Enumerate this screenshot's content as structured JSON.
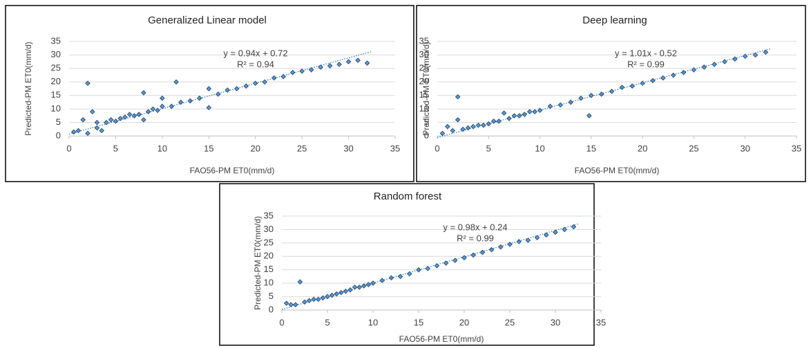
{
  "chart_data": [
    {
      "type": "scatter",
      "title": "Generalized Linear model",
      "x_label": "FAO56-PM ET0(mm/d)",
      "y_label": "Predicted-PM ET0(mm/d)",
      "annotations": [
        "y = 0.94x + 0.72",
        "R² = 0.94"
      ],
      "xlim": [
        0,
        35
      ],
      "ylim": [
        0,
        35
      ],
      "xticks": [
        0,
        5,
        10,
        15,
        20,
        25,
        30,
        35
      ],
      "yticks": [
        0,
        5,
        10,
        15,
        20,
        25,
        30,
        35
      ],
      "grid": true,
      "color": "#5b9bd5",
      "series": [
        {
          "x": [
            0.5,
            1,
            1.5,
            2,
            2,
            2.5,
            3,
            3,
            3.5,
            4,
            4.5,
            5,
            5.5,
            6,
            6.5,
            7,
            7.5,
            8,
            8,
            8.5,
            9,
            9.5,
            10,
            10,
            11,
            11.5,
            12,
            13,
            14,
            15,
            15,
            16,
            17,
            18,
            19,
            20,
            21,
            22,
            23,
            24,
            25,
            26,
            27,
            28,
            29,
            30,
            31,
            32
          ],
          "values": [
            1.5,
            2,
            6,
            19.5,
            1,
            9,
            3,
            5,
            2,
            5,
            6,
            5.5,
            6.5,
            7,
            8,
            7.5,
            8,
            16,
            6,
            9,
            10,
            9.5,
            11,
            14,
            11,
            20,
            12.5,
            13,
            14,
            10.5,
            17.5,
            15.5,
            17,
            17.5,
            18.5,
            19.5,
            20,
            21.5,
            22,
            23.5,
            24,
            24.5,
            25.5,
            26,
            26.5,
            27.5,
            28,
            27
          ]
        }
      ],
      "trendline": {
        "x": [
          0,
          32.5
        ],
        "values": [
          0.72,
          31.27
        ]
      }
    },
    {
      "type": "scatter",
      "title": "Deep learning",
      "x_label": "FAO56-PM ET0(mm/d)",
      "y_label": "Predicted-PM ET0(mm/d)",
      "annotations": [
        "y = 1.01x - 0.52",
        "R² = 0.99"
      ],
      "xlim": [
        0,
        35
      ],
      "ylim": [
        0,
        35
      ],
      "xticks": [
        0,
        5,
        10,
        15,
        20,
        25,
        30,
        35
      ],
      "yticks": [
        0,
        5,
        10,
        15,
        20,
        25,
        30,
        35
      ],
      "grid": true,
      "color": "#5b9bd5",
      "series": [
        {
          "x": [
            0.5,
            1,
            1.5,
            2,
            2,
            2.5,
            3,
            3.5,
            4,
            4.5,
            5,
            5.5,
            6,
            6.5,
            7,
            7.5,
            8,
            8.5,
            9,
            9.5,
            10,
            11,
            12,
            13,
            14,
            14.8,
            15,
            16,
            17,
            18,
            19,
            20,
            21,
            22,
            23,
            24,
            25,
            26,
            27,
            28,
            29,
            30,
            31,
            32
          ],
          "values": [
            1,
            3.5,
            2,
            14.5,
            6,
            2.5,
            3,
            3.5,
            4,
            4,
            4.5,
            5.5,
            5.5,
            8.5,
            6.5,
            7.5,
            7.5,
            8,
            9,
            9,
            9.5,
            11,
            11.5,
            12.5,
            14,
            7.5,
            15,
            15.5,
            16.5,
            18,
            18.5,
            19.5,
            20.5,
            21.5,
            22.5,
            23.5,
            24.5,
            25.5,
            26.5,
            27.5,
            28.5,
            29.5,
            30,
            31
          ]
        }
      ],
      "trendline": {
        "x": [
          0,
          32.5
        ],
        "values": [
          -0.52,
          32.31
        ]
      }
    },
    {
      "type": "scatter",
      "title": "Random forest",
      "x_label": "FAO56-PM ET0(mm/d)",
      "y_label": "Predicted-PM ET0(mm/d)",
      "annotations": [
        "y = 0.98x + 0.24",
        "R² = 0.99"
      ],
      "xlim": [
        0,
        35
      ],
      "ylim": [
        0,
        35
      ],
      "xticks": [
        0,
        5,
        10,
        15,
        20,
        25,
        30,
        35
      ],
      "yticks": [
        0,
        5,
        10,
        15,
        20,
        25,
        30,
        35
      ],
      "grid": true,
      "color": "#5b9bd5",
      "series": [
        {
          "x": [
            0.5,
            1,
            1.5,
            2,
            2.5,
            3,
            3.5,
            4,
            4.5,
            5,
            5.5,
            6,
            6.5,
            7,
            7.5,
            8,
            8.5,
            9,
            9.5,
            10,
            11,
            12,
            13,
            14,
            15,
            16,
            17,
            18,
            19,
            20,
            21,
            22,
            23,
            24,
            25,
            26,
            27,
            28,
            29,
            30,
            31,
            32
          ],
          "values": [
            2.5,
            2,
            2,
            10.5,
            3,
            3.5,
            4,
            4,
            4.5,
            5,
            5.5,
            6,
            6.5,
            7,
            7.5,
            8.5,
            8.5,
            9,
            9.5,
            10,
            11,
            12,
            12.5,
            13.5,
            15,
            15.5,
            16.5,
            17.5,
            18.5,
            19.5,
            20.5,
            21.5,
            22.5,
            23.5,
            24.5,
            25.5,
            26,
            27,
            28,
            29,
            30,
            31
          ]
        }
      ],
      "trendline": {
        "x": [
          0,
          32.5
        ],
        "values": [
          0.24,
          32.09
        ]
      }
    }
  ]
}
